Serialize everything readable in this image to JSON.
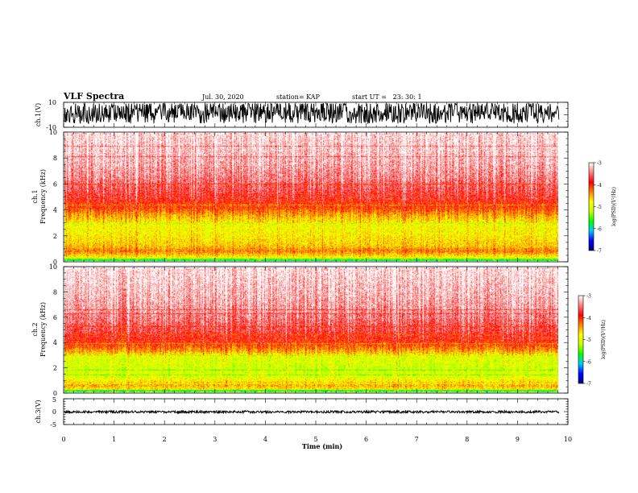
{
  "header": {
    "title": "VLF Spectra",
    "date": "Jul. 30, 2020",
    "station": "station= KAP",
    "start_ut": "start UT =   23: 30: 1"
  },
  "colors": {
    "colormap": [
      "#000080",
      "#0000ff",
      "#00c8ff",
      "#00ff00",
      "#c8ff00",
      "#ffff00",
      "#ff8000",
      "#ff0000",
      "#ff8080",
      "#ffffff"
    ],
    "trace": "#000000",
    "frame": "#000000"
  },
  "chart_data": [
    {
      "type": "line",
      "name": "ch.1 waveform",
      "ylabel": "ch.1(V)",
      "ylim": [
        -10,
        10
      ],
      "yticks": [
        "10",
        "-10"
      ],
      "xlim": [
        0,
        10
      ],
      "trace_range": [
        -7,
        9
      ],
      "trace_extent_min": 9.83
    },
    {
      "type": "heatmap",
      "name": "ch.1 spectrogram",
      "ylabel": "ch.1\nFrequency (kHz)",
      "ylim": [
        0,
        10
      ],
      "yticks": [
        "0",
        "2",
        "4",
        "6",
        "8",
        "10"
      ],
      "xlim": [
        0,
        10
      ],
      "data_extent_min": 9.83,
      "log_psd_profile": [
        {
          "f_khz": 0.0,
          "level": -5.2
        },
        {
          "f_khz": 0.8,
          "level": -4.3
        },
        {
          "f_khz": 1.2,
          "level": -4.6
        },
        {
          "f_khz": 2.0,
          "level": -4.8
        },
        {
          "f_khz": 2.8,
          "level": -4.9
        },
        {
          "f_khz": 3.4,
          "level": -4.6
        },
        {
          "f_khz": 4.2,
          "level": -4.1
        },
        {
          "f_khz": 5.0,
          "level": -3.8
        },
        {
          "f_khz": 6.5,
          "level": -3.45
        },
        {
          "f_khz": 8.0,
          "level": -3.25
        },
        {
          "f_khz": 10.0,
          "level": -3.1
        }
      ],
      "colorbar": {
        "label": "log(PSD)(V²/Hz)",
        "range": [
          -7,
          -3
        ],
        "ticks": [
          "-3",
          "-4",
          "-5",
          "-6",
          "-7"
        ]
      }
    },
    {
      "type": "heatmap",
      "name": "ch.2 spectrogram",
      "ylabel": "ch.2\nFrequency (kHz)",
      "ylim": [
        0,
        10
      ],
      "yticks": [
        "0",
        "2",
        "4",
        "6",
        "8",
        "10"
      ],
      "xlim": [
        0,
        10
      ],
      "data_extent_min": 9.83,
      "log_psd_profile": [
        {
          "f_khz": 0.0,
          "level": -5.0
        },
        {
          "f_khz": 0.6,
          "level": -4.5
        },
        {
          "f_khz": 1.2,
          "level": -5.0
        },
        {
          "f_khz": 2.0,
          "level": -5.1
        },
        {
          "f_khz": 2.8,
          "level": -5.0
        },
        {
          "f_khz": 3.3,
          "level": -4.5
        },
        {
          "f_khz": 4.0,
          "level": -4.0
        },
        {
          "f_khz": 5.0,
          "level": -3.7
        },
        {
          "f_khz": 6.5,
          "level": -3.4
        },
        {
          "f_khz": 8.0,
          "level": -3.25
        },
        {
          "f_khz": 10.0,
          "level": -3.1
        }
      ],
      "colorbar": {
        "label": "log(PSD)(V²/Hz)",
        "range": [
          -7,
          -3
        ],
        "ticks": [
          "-3",
          "-4",
          "-5",
          "-6",
          "-7"
        ]
      }
    },
    {
      "type": "line",
      "name": "ch.3 waveform",
      "ylabel": "ch.3(V)",
      "ylim": [
        -5,
        5
      ],
      "yticks": [
        "5",
        "0",
        "-5"
      ],
      "xlim": [
        0,
        10
      ],
      "trace_range": [
        -0.5,
        0.4
      ],
      "trace_center": -0.1,
      "trace_extent_min": 9.83,
      "xlabel": "Time (min)",
      "xticks": [
        "0",
        "1",
        "2",
        "3",
        "4",
        "5",
        "6",
        "7",
        "8",
        "9",
        "10"
      ]
    }
  ]
}
